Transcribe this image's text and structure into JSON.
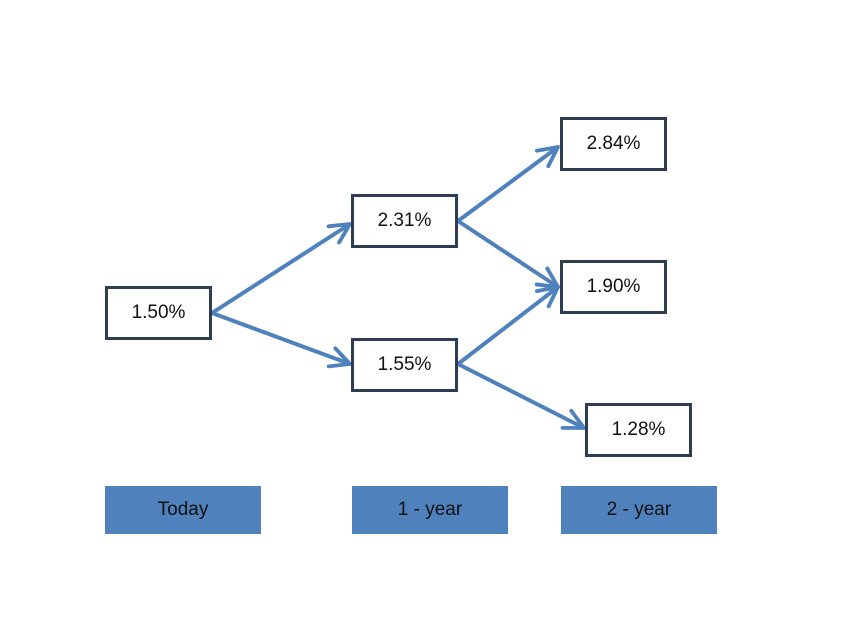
{
  "colors": {
    "arrow": "#4f81bd",
    "node_border": "#2e3d52",
    "label_fill": "#4f81bd"
  },
  "nodes": {
    "today": "1.50%",
    "year1_up": "2.31%",
    "year1_down": "1.55%",
    "year2_up": "2.84%",
    "year2_mid": "1.90%",
    "year2_down": "1.28%"
  },
  "periods": {
    "today": "Today",
    "year1": "1 - year",
    "year2": "2 - year"
  }
}
